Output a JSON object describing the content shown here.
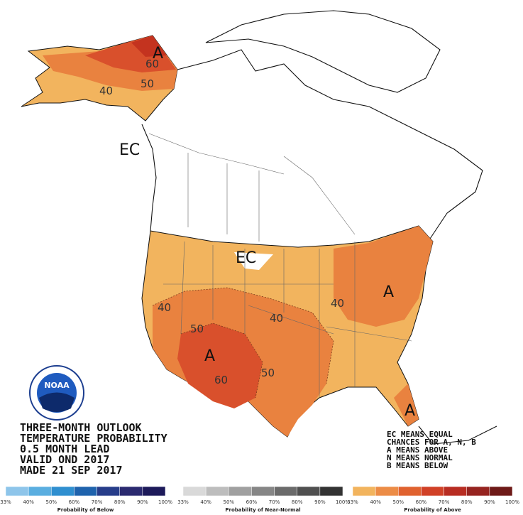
{
  "map_labels": [
    "A",
    "60",
    "50",
    "40",
    "EC",
    "EC",
    "40",
    "50",
    "40",
    "A",
    "60",
    "50",
    "40",
    "A",
    "A"
  ],
  "logo": "NOAA",
  "title_lines": [
    "THREE-MONTH OUTLOOK",
    "TEMPERATURE PROBABILITY",
    "0.5 MONTH LEAD",
    "VALID OND 2017",
    "MADE 21 SEP 2017"
  ],
  "legend_notes": [
    "EC MEANS EQUAL",
    "CHANCES FOR A, N, B",
    "A MEANS ABOVE",
    "N MEANS NORMAL",
    "B MEANS BELOW"
  ],
  "color_bars": [
    {
      "caption": "Probability of Below",
      "ticks": [
        "33%",
        "40%",
        "50%",
        "60%",
        "70%",
        "80%",
        "90%",
        "100%"
      ]
    },
    {
      "caption": "Probability of Near-Normal",
      "ticks": [
        "33%",
        "40%",
        "50%",
        "60%",
        "70%",
        "80%",
        "90%",
        "100%"
      ]
    },
    {
      "caption": "Probability of Above",
      "ticks": [
        "33%",
        "40%",
        "50%",
        "60%",
        "70%",
        "80%",
        "90%",
        "100%"
      ]
    }
  ]
}
